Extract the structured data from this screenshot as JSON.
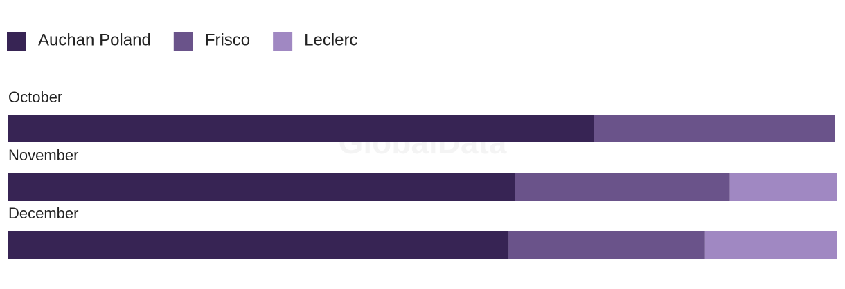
{
  "chart_data": {
    "type": "stacked-bar-horizontal",
    "watermark": "GlobalData",
    "categories": [
      "October",
      "November",
      "December"
    ],
    "xlim": [
      0,
      100
    ],
    "series": [
      {
        "name": "Auchan Poland",
        "color": "#372454",
        "values": [
          70.7,
          61.2,
          60.4
        ]
      },
      {
        "name": "Frisco",
        "color": "#6a538a",
        "values": [
          29.1,
          25.9,
          23.7
        ]
      },
      {
        "name": "Leclerc",
        "color": "#a088c2",
        "values": [
          0,
          12.9,
          15.9
        ]
      }
    ]
  }
}
